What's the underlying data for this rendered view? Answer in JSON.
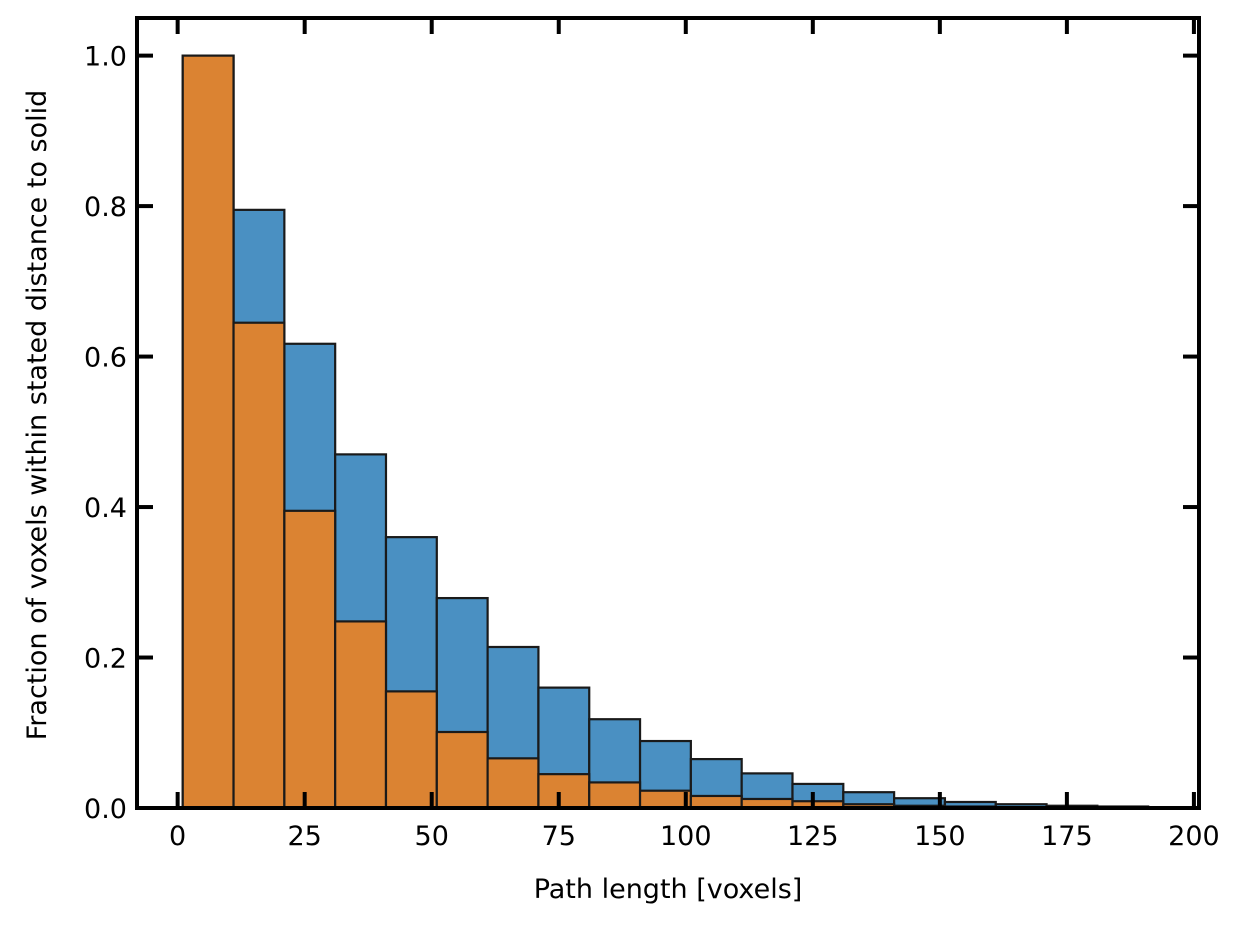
{
  "chart_data": {
    "type": "bar",
    "title": "",
    "xlabel": "Path length [voxels]",
    "ylabel": "Fraction of voxels within stated distance to solid",
    "xlim": [
      -8,
      201
    ],
    "ylim": [
      0,
      1.05
    ],
    "xticks": [
      0,
      25,
      50,
      75,
      100,
      125,
      150,
      175,
      200
    ],
    "yticks": [
      0.0,
      0.2,
      0.4,
      0.6,
      0.8,
      1.0
    ],
    "xtick_labels": [
      "0",
      "25",
      "50",
      "75",
      "100",
      "125",
      "150",
      "175",
      "200"
    ],
    "ytick_labels": [
      "0.0",
      "0.2",
      "0.4",
      "0.6",
      "0.8",
      "1.0"
    ],
    "grid": false,
    "tick_direction": "in",
    "bin_edges": [
      1,
      11,
      21,
      31,
      41,
      51,
      61,
      71,
      81,
      91,
      101,
      111,
      121,
      131,
      141,
      151,
      161,
      171,
      181,
      191,
      201
    ],
    "series": [
      {
        "color": "#4a90c2",
        "values": [
          1.0,
          0.795,
          0.617,
          0.47,
          0.36,
          0.279,
          0.214,
          0.16,
          0.118,
          0.089,
          0.065,
          0.046,
          0.032,
          0.021,
          0.013,
          0.008,
          0.005,
          0.003,
          0.002,
          0.001
        ]
      },
      {
        "color": "#db8332",
        "values": [
          1.0,
          0.645,
          0.395,
          0.248,
          0.155,
          0.101,
          0.066,
          0.045,
          0.034,
          0.023,
          0.016,
          0.012,
          0.009,
          0.005,
          0.003,
          0.002,
          0.001,
          0.0,
          0.0,
          0.0
        ]
      }
    ],
    "edge_color": "#1a1a1a"
  }
}
